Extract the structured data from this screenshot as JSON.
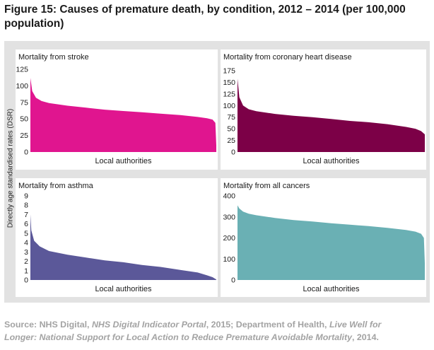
{
  "title_line1": "Figure 15: Causes of premature death, by condition, 2012 – 2014 (per 100,000",
  "title_line2": "population)",
  "shared_ylabel": "Directly age standardised rates (DSR)",
  "source": {
    "t1": "Source: NHS Digital, ",
    "t2": "NHS Digital Indicator Portal",
    "t3": ", 2015; Department of Health, ",
    "t4": "Live Well for",
    "t5": "Longer: National Support for Local Action to Reduce Premature Avoidable Mortality",
    "t6": ", 2014."
  },
  "chart_data": [
    {
      "type": "area",
      "title": "Mortality from stroke",
      "xlabel": "Local authorities",
      "ylabel": "Directly age standardised rates (DSR)",
      "color": "#e0158f",
      "ylim": [
        0,
        125
      ],
      "yticks": [
        0,
        25,
        50,
        75,
        100,
        125
      ],
      "x": [
        0,
        0.01,
        0.03,
        0.06,
        0.1,
        0.2,
        0.3,
        0.4,
        0.5,
        0.6,
        0.7,
        0.8,
        0.9,
        0.95,
        0.98,
        0.995,
        1.0
      ],
      "y": [
        112,
        92,
        82,
        77,
        74,
        70,
        67,
        64,
        62,
        60,
        58,
        56,
        53,
        51,
        49,
        44,
        10
      ]
    },
    {
      "type": "area",
      "title": "Mortality from coronary heart disease",
      "xlabel": "Local authorities",
      "ylabel": "Directly age standardised rates (DSR)",
      "color": "#7c0047",
      "ylim": [
        0,
        175
      ],
      "yticks": [
        0,
        25,
        50,
        75,
        100,
        125,
        150,
        175
      ],
      "x": [
        0,
        0.01,
        0.03,
        0.06,
        0.1,
        0.2,
        0.3,
        0.4,
        0.5,
        0.6,
        0.7,
        0.8,
        0.9,
        0.95,
        0.98,
        1.0
      ],
      "y": [
        158,
        118,
        100,
        92,
        88,
        82,
        78,
        75,
        71,
        67,
        64,
        60,
        54,
        50,
        45,
        38
      ]
    },
    {
      "type": "area",
      "title": "Mortality from asthma",
      "xlabel": "Local authorities",
      "ylabel": "Directly age standardised rates (DSR)",
      "color": "#5b5899",
      "ylim": [
        0,
        9
      ],
      "yticks": [
        0,
        1,
        2,
        3,
        4,
        5,
        6,
        7,
        8,
        9
      ],
      "x": [
        0,
        0.005,
        0.02,
        0.05,
        0.1,
        0.2,
        0.3,
        0.4,
        0.5,
        0.6,
        0.7,
        0.8,
        0.9,
        0.95,
        0.98,
        1.0
      ],
      "y": [
        7.0,
        5.3,
        4.2,
        3.6,
        3.1,
        2.7,
        2.4,
        2.1,
        1.9,
        1.6,
        1.4,
        1.1,
        0.8,
        0.5,
        0.3,
        0.05
      ]
    },
    {
      "type": "area",
      "title": "Mortality from all cancers",
      "xlabel": "Local authorities",
      "ylabel": "Directly age standardised rates (DSR)",
      "color": "#6ab0b4",
      "ylim": [
        0,
        400
      ],
      "yticks": [
        0,
        100,
        200,
        300,
        400
      ],
      "x": [
        0,
        0.01,
        0.03,
        0.06,
        0.1,
        0.2,
        0.3,
        0.4,
        0.5,
        0.6,
        0.7,
        0.8,
        0.9,
        0.95,
        0.98,
        0.995,
        1.0
      ],
      "y": [
        355,
        340,
        325,
        315,
        308,
        295,
        285,
        278,
        270,
        263,
        256,
        248,
        238,
        230,
        220,
        200,
        80
      ]
    }
  ]
}
